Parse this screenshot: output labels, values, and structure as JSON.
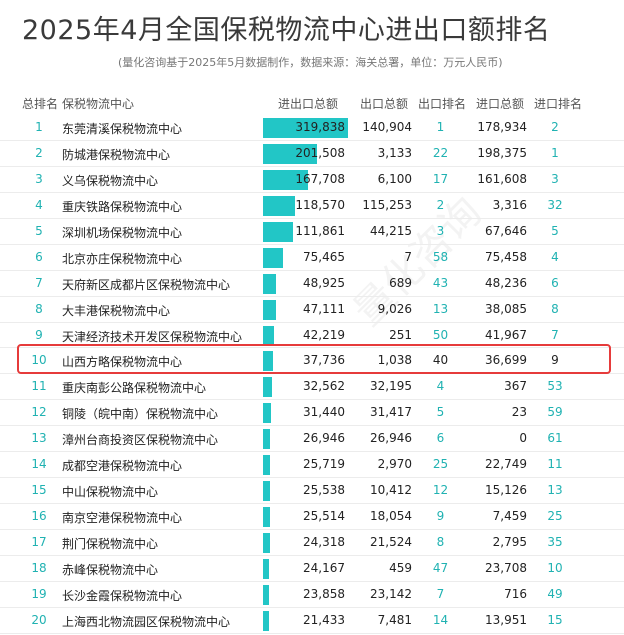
{
  "title": "2025年4月全国保税物流中心进出口额排名",
  "subtitle": "(量化咨询基于2025年5月数据制作，数据来源：海关总署，单位：万元人民币)",
  "watermark": "量化咨询",
  "colors": {
    "bar": "#22c6c6",
    "rank_text": "#20b2b2",
    "highlight_border": "#e63b3b"
  },
  "headers": {
    "total_rank": "总排名",
    "center": "保税物流中心",
    "import_export": "进出口总额",
    "export": "出口总额",
    "export_rank": "出口排名",
    "import": "进口总额",
    "import_rank": "进口排名"
  },
  "bar_max": 319838,
  "highlighted_rank": "10",
  "rows": [
    {
      "rank": "1",
      "name": "东莞清溪保税物流中心",
      "total": "319,838",
      "total_value": 319838,
      "export": "140,904",
      "export_rank": "1",
      "import": "178,934",
      "import_rank": "2"
    },
    {
      "rank": "2",
      "name": "防城港保税物流中心",
      "total": "201,508",
      "total_value": 201508,
      "export": "3,133",
      "export_rank": "22",
      "import": "198,375",
      "import_rank": "1"
    },
    {
      "rank": "3",
      "name": "义乌保税物流中心",
      "total": "167,708",
      "total_value": 167708,
      "export": "6,100",
      "export_rank": "17",
      "import": "161,608",
      "import_rank": "3"
    },
    {
      "rank": "4",
      "name": "重庆铁路保税物流中心",
      "total": "118,570",
      "total_value": 118570,
      "export": "115,253",
      "export_rank": "2",
      "import": "3,316",
      "import_rank": "32"
    },
    {
      "rank": "5",
      "name": "深圳机场保税物流中心",
      "total": "111,861",
      "total_value": 111861,
      "export": "44,215",
      "export_rank": "3",
      "import": "67,646",
      "import_rank": "5"
    },
    {
      "rank": "6",
      "name": "北京亦庄保税物流中心",
      "total": "75,465",
      "total_value": 75465,
      "export": "7",
      "export_rank": "58",
      "import": "75,458",
      "import_rank": "4"
    },
    {
      "rank": "7",
      "name": "天府新区成都片区保税物流中心",
      "total": "48,925",
      "total_value": 48925,
      "export": "689",
      "export_rank": "43",
      "import": "48,236",
      "import_rank": "6"
    },
    {
      "rank": "8",
      "name": "大丰港保税物流中心",
      "total": "47,111",
      "total_value": 47111,
      "export": "9,026",
      "export_rank": "13",
      "import": "38,085",
      "import_rank": "8"
    },
    {
      "rank": "9",
      "name": "天津经济技术开发区保税物流中心",
      "total": "42,219",
      "total_value": 42219,
      "export": "251",
      "export_rank": "50",
      "import": "41,967",
      "import_rank": "7"
    },
    {
      "rank": "10",
      "name": "山西方略保税物流中心",
      "total": "37,736",
      "total_value": 37736,
      "export": "1,038",
      "export_rank": "40",
      "import": "36,699",
      "import_rank": "9"
    },
    {
      "rank": "11",
      "name": "重庆南彭公路保税物流中心",
      "total": "32,562",
      "total_value": 32562,
      "export": "32,195",
      "export_rank": "4",
      "import": "367",
      "import_rank": "53"
    },
    {
      "rank": "12",
      "name": "铜陵（皖中南）保税物流中心",
      "total": "31,440",
      "total_value": 31440,
      "export": "31,417",
      "export_rank": "5",
      "import": "23",
      "import_rank": "59"
    },
    {
      "rank": "13",
      "name": "漳州台商投资区保税物流中心",
      "total": "26,946",
      "total_value": 26946,
      "export": "26,946",
      "export_rank": "6",
      "import": "0",
      "import_rank": "61"
    },
    {
      "rank": "14",
      "name": "成都空港保税物流中心",
      "total": "25,719",
      "total_value": 25719,
      "export": "2,970",
      "export_rank": "25",
      "import": "22,749",
      "import_rank": "11"
    },
    {
      "rank": "15",
      "name": "中山保税物流中心",
      "total": "25,538",
      "total_value": 25538,
      "export": "10,412",
      "export_rank": "12",
      "import": "15,126",
      "import_rank": "13"
    },
    {
      "rank": "16",
      "name": "南京空港保税物流中心",
      "total": "25,514",
      "total_value": 25514,
      "export": "18,054",
      "export_rank": "9",
      "import": "7,459",
      "import_rank": "25"
    },
    {
      "rank": "17",
      "name": "荆门保税物流中心",
      "total": "24,318",
      "total_value": 24318,
      "export": "21,524",
      "export_rank": "8",
      "import": "2,795",
      "import_rank": "35"
    },
    {
      "rank": "18",
      "name": "赤峰保税物流中心",
      "total": "24,167",
      "total_value": 24167,
      "export": "459",
      "export_rank": "47",
      "import": "23,708",
      "import_rank": "10"
    },
    {
      "rank": "19",
      "name": "长沙金霞保税物流中心",
      "total": "23,858",
      "total_value": 23858,
      "export": "23,142",
      "export_rank": "7",
      "import": "716",
      "import_rank": "49"
    },
    {
      "rank": "20",
      "name": "上海西北物流园区保税物流中心",
      "total": "21,433",
      "total_value": 21433,
      "export": "7,481",
      "export_rank": "14",
      "import": "13,951",
      "import_rank": "15"
    }
  ]
}
